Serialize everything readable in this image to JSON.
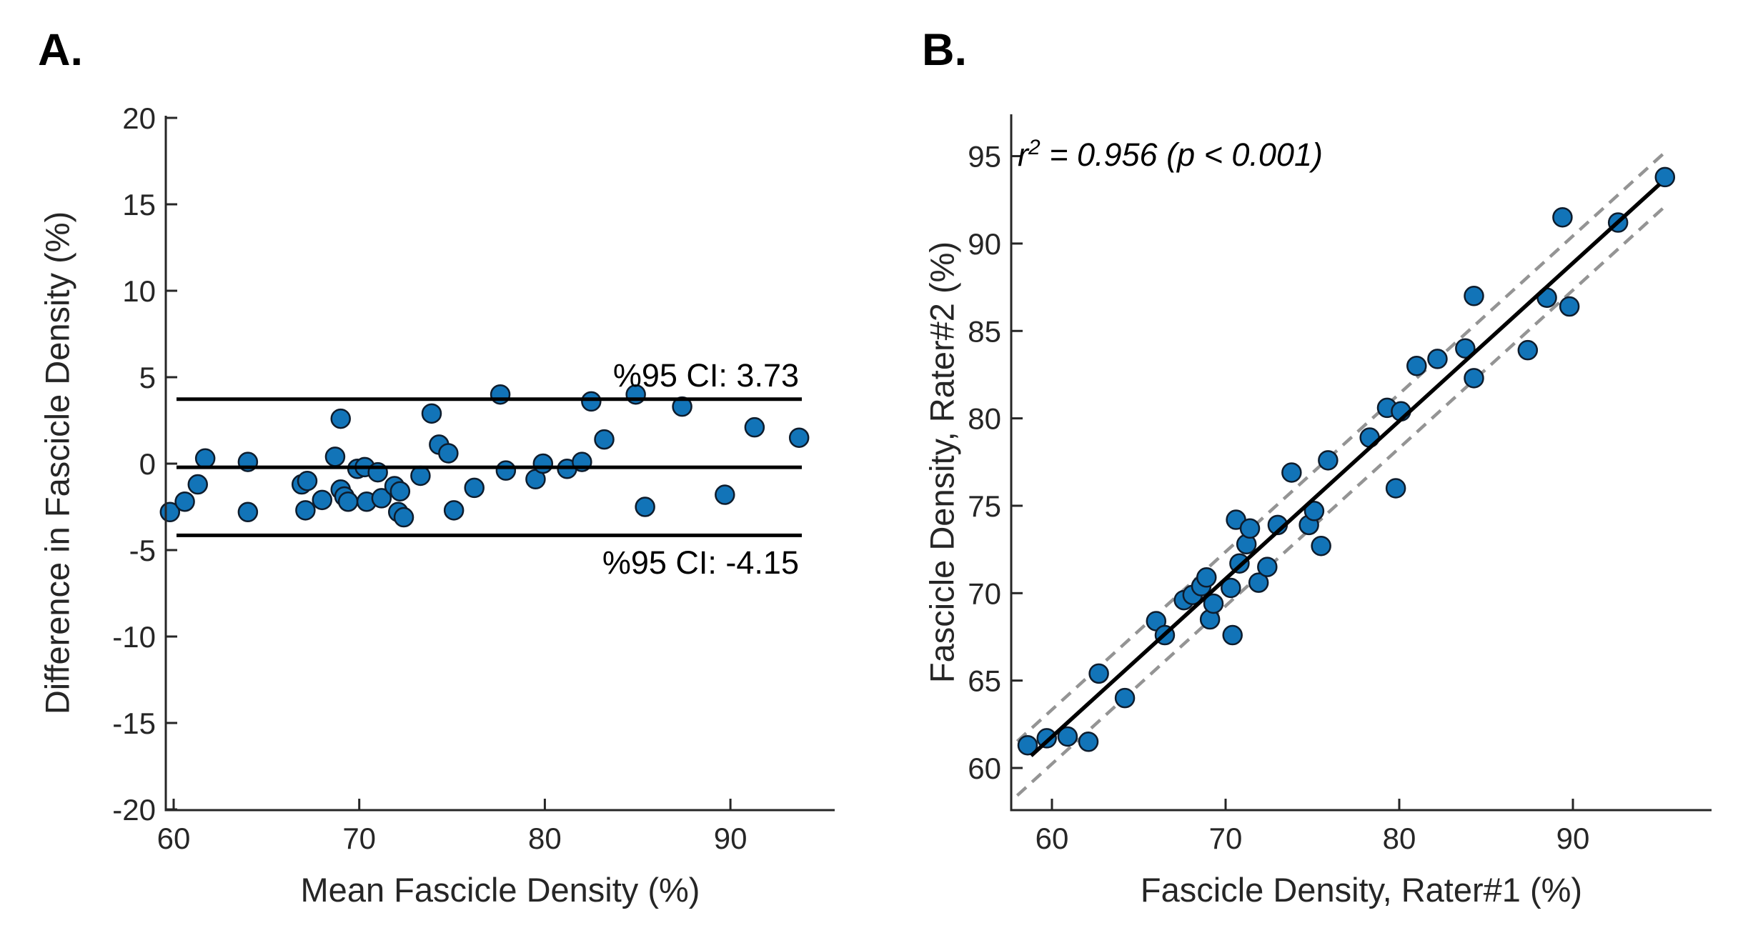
{
  "style": {
    "background": "#ffffff",
    "marker_fill": "#1274b8",
    "marker_edge": "#0e1c2c",
    "solid_line_color": "#000000",
    "dashed_line_color": "#949494",
    "axis_color": "#262626",
    "tick_label_color": "#262626"
  },
  "chart_data": [
    {
      "id": "panel_a_bland_altman",
      "type": "scatter",
      "panel_letter": "A.",
      "xlabel": "Mean Fascicle Density (%)",
      "ylabel": "Difference in Fascicle Density (%)",
      "xlim": [
        59.6,
        95.6
      ],
      "ylim": [
        -20,
        20
      ],
      "x_ticks": [
        60,
        70,
        80,
        90
      ],
      "y_ticks": [
        20,
        15,
        10,
        5,
        0,
        -5,
        -10,
        -15,
        -20
      ],
      "grid": false,
      "legend": null,
      "reference_lines": {
        "upper_loa": 3.73,
        "mean_bias": -0.21,
        "lower_loa": -4.15
      },
      "annotations": {
        "upper": "%95 CI: 3.73",
        "lower": "%95 CI: -4.15"
      },
      "points": [
        [
          59.8,
          -2.8
        ],
        [
          60.6,
          -2.2
        ],
        [
          61.3,
          -1.2
        ],
        [
          61.7,
          0.3
        ],
        [
          64.0,
          0.1
        ],
        [
          64.0,
          -2.8
        ],
        [
          66.9,
          -1.2
        ],
        [
          67.2,
          -1.0
        ],
        [
          67.1,
          -2.7
        ],
        [
          68.0,
          -2.1
        ],
        [
          68.7,
          0.4
        ],
        [
          69.0,
          2.6
        ],
        [
          69.0,
          -1.5
        ],
        [
          69.2,
          -1.9
        ],
        [
          69.4,
          -2.2
        ],
        [
          69.9,
          -0.3
        ],
        [
          70.3,
          -0.2
        ],
        [
          70.4,
          -2.2
        ],
        [
          71.0,
          -0.5
        ],
        [
          71.2,
          -2.0
        ],
        [
          71.9,
          -1.3
        ],
        [
          72.2,
          -1.6
        ],
        [
          72.1,
          -2.8
        ],
        [
          72.4,
          -3.1
        ],
        [
          73.3,
          -0.7
        ],
        [
          73.9,
          2.9
        ],
        [
          74.3,
          1.1
        ],
        [
          74.8,
          0.6
        ],
        [
          75.1,
          -2.7
        ],
        [
          76.2,
          -1.4
        ],
        [
          77.6,
          4.0
        ],
        [
          77.9,
          -0.4
        ],
        [
          79.5,
          -0.9
        ],
        [
          79.9,
          0.0
        ],
        [
          81.2,
          -0.3
        ],
        [
          82.0,
          0.1
        ],
        [
          82.5,
          3.6
        ],
        [
          83.2,
          1.4
        ],
        [
          84.9,
          4.0
        ],
        [
          85.4,
          -2.5
        ],
        [
          87.4,
          3.3
        ],
        [
          89.7,
          -1.8
        ],
        [
          91.3,
          2.1
        ],
        [
          93.7,
          1.5
        ]
      ]
    },
    {
      "id": "panel_b_correlation",
      "type": "scatter",
      "panel_letter": "B.",
      "xlabel": "Fascicle Density, Rater#1 (%)",
      "ylabel": "Fascicle Density, Rater#2 (%)",
      "xlim": [
        57.6,
        98.0
      ],
      "ylim": [
        57.6,
        97.0
      ],
      "x_ticks": [
        60,
        70,
        80,
        90
      ],
      "y_ticks": [
        95,
        90,
        85,
        80,
        75,
        70,
        65,
        60
      ],
      "grid": false,
      "legend": null,
      "annotation": {
        "r_base": "r",
        "r_sup": "2",
        "r_rest": " = 0.956 (p < 0.001)"
      },
      "fit_line": {
        "x1": 58.8,
        "y1": 60.7,
        "x2": 95.0,
        "y2": 93.4
      },
      "ci_band_offset": 1.55,
      "ci_band_x_range": [
        58.0,
        95.3
      ],
      "points": [
        [
          58.6,
          61.3
        ],
        [
          59.7,
          61.7
        ],
        [
          60.9,
          61.8
        ],
        [
          62.1,
          61.5
        ],
        [
          62.7,
          65.4
        ],
        [
          64.2,
          64.0
        ],
        [
          66.0,
          68.4
        ],
        [
          66.5,
          67.6
        ],
        [
          67.6,
          69.6
        ],
        [
          68.1,
          69.9
        ],
        [
          68.6,
          70.4
        ],
        [
          68.9,
          70.9
        ],
        [
          69.1,
          68.5
        ],
        [
          69.3,
          69.4
        ],
        [
          70.3,
          70.3
        ],
        [
          70.4,
          67.6
        ],
        [
          70.6,
          74.2
        ],
        [
          70.8,
          71.7
        ],
        [
          71.2,
          72.8
        ],
        [
          71.4,
          73.7
        ],
        [
          71.9,
          70.6
        ],
        [
          72.4,
          71.5
        ],
        [
          73.0,
          73.9
        ],
        [
          73.8,
          76.9
        ],
        [
          74.8,
          73.9
        ],
        [
          75.1,
          74.7
        ],
        [
          75.5,
          72.7
        ],
        [
          75.9,
          77.6
        ],
        [
          78.3,
          78.9
        ],
        [
          79.3,
          80.6
        ],
        [
          79.8,
          76.0
        ],
        [
          80.1,
          80.4
        ],
        [
          81.0,
          83.0
        ],
        [
          82.2,
          83.4
        ],
        [
          83.8,
          84.0
        ],
        [
          84.3,
          82.3
        ],
        [
          84.3,
          87.0
        ],
        [
          87.4,
          83.9
        ],
        [
          88.5,
          86.9
        ],
        [
          89.4,
          91.5
        ],
        [
          89.8,
          86.4
        ],
        [
          92.6,
          91.2
        ],
        [
          95.3,
          93.8
        ]
      ]
    }
  ]
}
